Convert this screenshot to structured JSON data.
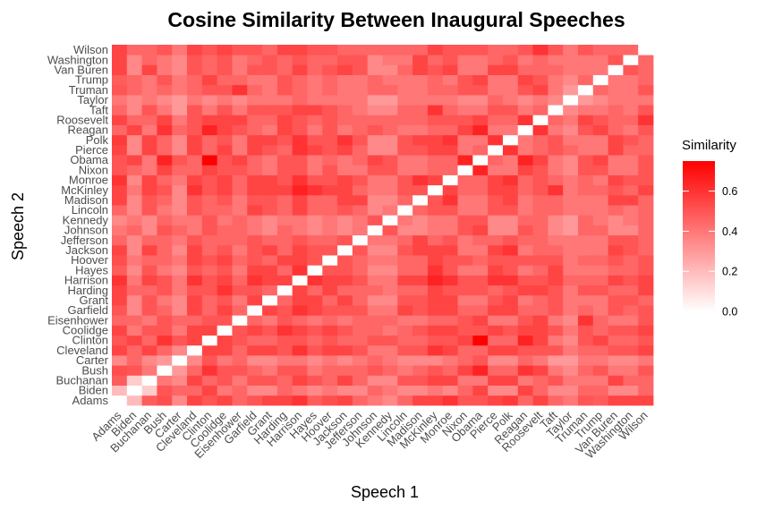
{
  "chart_data": {
    "type": "heatmap",
    "title": "Cosine Similarity Between Inaugural Speeches",
    "xlabel": "Speech 1",
    "ylabel": "Speech 2",
    "categories": [
      "Adams",
      "Biden",
      "Buchanan",
      "Bush",
      "Carter",
      "Cleveland",
      "Clinton",
      "Coolidge",
      "Eisenhower",
      "Garfield",
      "Grant",
      "Harding",
      "Harrison",
      "Hayes",
      "Hoover",
      "Jackson",
      "Jefferson",
      "Johnson",
      "Kennedy",
      "Lincoln",
      "Madison",
      "McKinley",
      "Monroe",
      "Nixon",
      "Obama",
      "Pierce",
      "Polk",
      "Reagan",
      "Roosevelt",
      "Taft",
      "Taylor",
      "Truman",
      "Trump",
      "Van Buren",
      "Washington",
      "Wilson"
    ],
    "value_range": [
      0,
      0.75
    ],
    "color_low": "#ffffff",
    "color_high": "#ff0000",
    "grid": false,
    "legend": {
      "title": "Similarity",
      "position": "right",
      "ticks": [
        {
          "value": 0.0,
          "label": "0.0"
        },
        {
          "value": 0.2,
          "label": "0.2"
        },
        {
          "value": 0.4,
          "label": "0.4"
        },
        {
          "value": 0.6,
          "label": "0.6"
        }
      ]
    },
    "values": [
      [
        0.0,
        0.2,
        0.48,
        0.52,
        0.35,
        0.55,
        0.5,
        0.55,
        0.45,
        0.5,
        0.55,
        0.55,
        0.6,
        0.48,
        0.52,
        0.55,
        0.45,
        0.4,
        0.35,
        0.45,
        0.55,
        0.55,
        0.6,
        0.5,
        0.5,
        0.55,
        0.58,
        0.45,
        0.55,
        0.45,
        0.4,
        0.5,
        0.48,
        0.55,
        0.55,
        0.55
      ],
      [
        0.2,
        0.0,
        0.15,
        0.5,
        0.45,
        0.45,
        0.55,
        0.4,
        0.45,
        0.35,
        0.35,
        0.45,
        0.4,
        0.35,
        0.4,
        0.35,
        0.35,
        0.45,
        0.4,
        0.35,
        0.35,
        0.4,
        0.35,
        0.45,
        0.55,
        0.35,
        0.35,
        0.55,
        0.45,
        0.35,
        0.35,
        0.45,
        0.45,
        0.35,
        0.35,
        0.45
      ],
      [
        0.48,
        0.15,
        0.0,
        0.4,
        0.35,
        0.55,
        0.45,
        0.5,
        0.4,
        0.5,
        0.5,
        0.45,
        0.55,
        0.5,
        0.45,
        0.55,
        0.45,
        0.35,
        0.35,
        0.5,
        0.5,
        0.55,
        0.55,
        0.4,
        0.4,
        0.55,
        0.55,
        0.4,
        0.45,
        0.5,
        0.4,
        0.4,
        0.4,
        0.55,
        0.45,
        0.45
      ],
      [
        0.52,
        0.5,
        0.4,
        0.0,
        0.3,
        0.45,
        0.6,
        0.5,
        0.5,
        0.45,
        0.4,
        0.5,
        0.5,
        0.4,
        0.45,
        0.45,
        0.45,
        0.5,
        0.45,
        0.4,
        0.45,
        0.5,
        0.45,
        0.55,
        0.65,
        0.45,
        0.45,
        0.6,
        0.55,
        0.4,
        0.35,
        0.45,
        0.5,
        0.4,
        0.4,
        0.5
      ],
      [
        0.35,
        0.45,
        0.35,
        0.3,
        0.0,
        0.35,
        0.5,
        0.4,
        0.45,
        0.35,
        0.35,
        0.4,
        0.4,
        0.35,
        0.4,
        0.35,
        0.4,
        0.45,
        0.4,
        0.35,
        0.35,
        0.35,
        0.4,
        0.45,
        0.5,
        0.35,
        0.35,
        0.45,
        0.4,
        0.3,
        0.3,
        0.4,
        0.4,
        0.35,
        0.35,
        0.4
      ],
      [
        0.55,
        0.45,
        0.55,
        0.45,
        0.35,
        0.0,
        0.55,
        0.55,
        0.45,
        0.55,
        0.55,
        0.5,
        0.6,
        0.5,
        0.55,
        0.55,
        0.5,
        0.4,
        0.4,
        0.5,
        0.5,
        0.6,
        0.55,
        0.45,
        0.45,
        0.55,
        0.55,
        0.5,
        0.5,
        0.5,
        0.4,
        0.45,
        0.45,
        0.5,
        0.5,
        0.55
      ],
      [
        0.5,
        0.55,
        0.45,
        0.6,
        0.5,
        0.55,
        0.0,
        0.55,
        0.5,
        0.45,
        0.45,
        0.5,
        0.5,
        0.45,
        0.5,
        0.45,
        0.45,
        0.5,
        0.5,
        0.45,
        0.45,
        0.5,
        0.5,
        0.55,
        0.75,
        0.45,
        0.45,
        0.65,
        0.55,
        0.4,
        0.35,
        0.5,
        0.55,
        0.45,
        0.45,
        0.5
      ],
      [
        0.55,
        0.4,
        0.5,
        0.5,
        0.4,
        0.55,
        0.55,
        0.0,
        0.5,
        0.55,
        0.5,
        0.6,
        0.55,
        0.5,
        0.55,
        0.5,
        0.45,
        0.45,
        0.4,
        0.45,
        0.5,
        0.55,
        0.55,
        0.5,
        0.5,
        0.55,
        0.5,
        0.55,
        0.55,
        0.5,
        0.4,
        0.5,
        0.45,
        0.5,
        0.5,
        0.55
      ],
      [
        0.45,
        0.45,
        0.4,
        0.5,
        0.45,
        0.45,
        0.5,
        0.5,
        0.0,
        0.45,
        0.4,
        0.5,
        0.45,
        0.4,
        0.45,
        0.4,
        0.45,
        0.45,
        0.45,
        0.4,
        0.4,
        0.45,
        0.45,
        0.5,
        0.55,
        0.4,
        0.4,
        0.5,
        0.55,
        0.4,
        0.35,
        0.6,
        0.45,
        0.4,
        0.4,
        0.5
      ],
      [
        0.5,
        0.35,
        0.5,
        0.45,
        0.35,
        0.55,
        0.45,
        0.55,
        0.45,
        0.0,
        0.55,
        0.5,
        0.6,
        0.55,
        0.5,
        0.5,
        0.5,
        0.4,
        0.4,
        0.55,
        0.5,
        0.55,
        0.55,
        0.45,
        0.45,
        0.55,
        0.55,
        0.45,
        0.45,
        0.5,
        0.4,
        0.45,
        0.4,
        0.5,
        0.45,
        0.5
      ],
      [
        0.55,
        0.35,
        0.5,
        0.4,
        0.35,
        0.55,
        0.45,
        0.5,
        0.4,
        0.55,
        0.0,
        0.45,
        0.55,
        0.55,
        0.45,
        0.55,
        0.45,
        0.35,
        0.35,
        0.5,
        0.5,
        0.55,
        0.55,
        0.4,
        0.4,
        0.5,
        0.55,
        0.4,
        0.45,
        0.5,
        0.4,
        0.4,
        0.4,
        0.5,
        0.5,
        0.45
      ],
      [
        0.55,
        0.45,
        0.45,
        0.5,
        0.4,
        0.5,
        0.5,
        0.6,
        0.5,
        0.5,
        0.45,
        0.0,
        0.55,
        0.45,
        0.55,
        0.45,
        0.45,
        0.45,
        0.4,
        0.45,
        0.45,
        0.55,
        0.5,
        0.5,
        0.5,
        0.45,
        0.5,
        0.55,
        0.55,
        0.5,
        0.4,
        0.5,
        0.5,
        0.45,
        0.45,
        0.55
      ],
      [
        0.6,
        0.4,
        0.55,
        0.5,
        0.4,
        0.6,
        0.5,
        0.55,
        0.45,
        0.6,
        0.55,
        0.55,
        0.0,
        0.6,
        0.55,
        0.55,
        0.5,
        0.4,
        0.4,
        0.55,
        0.55,
        0.65,
        0.6,
        0.5,
        0.5,
        0.6,
        0.6,
        0.5,
        0.5,
        0.55,
        0.45,
        0.45,
        0.45,
        0.55,
        0.5,
        0.55
      ],
      [
        0.48,
        0.35,
        0.5,
        0.4,
        0.35,
        0.5,
        0.45,
        0.5,
        0.4,
        0.55,
        0.55,
        0.45,
        0.6,
        0.0,
        0.5,
        0.5,
        0.45,
        0.35,
        0.35,
        0.45,
        0.45,
        0.6,
        0.5,
        0.4,
        0.4,
        0.55,
        0.5,
        0.4,
        0.45,
        0.55,
        0.4,
        0.4,
        0.4,
        0.45,
        0.45,
        0.5
      ],
      [
        0.52,
        0.4,
        0.45,
        0.45,
        0.4,
        0.55,
        0.5,
        0.55,
        0.45,
        0.5,
        0.45,
        0.55,
        0.55,
        0.5,
        0.0,
        0.5,
        0.45,
        0.4,
        0.4,
        0.45,
        0.45,
        0.55,
        0.5,
        0.5,
        0.45,
        0.5,
        0.5,
        0.5,
        0.5,
        0.5,
        0.4,
        0.45,
        0.45,
        0.5,
        0.45,
        0.5
      ],
      [
        0.55,
        0.35,
        0.55,
        0.45,
        0.35,
        0.55,
        0.45,
        0.5,
        0.4,
        0.5,
        0.55,
        0.45,
        0.55,
        0.5,
        0.5,
        0.0,
        0.5,
        0.35,
        0.35,
        0.5,
        0.55,
        0.55,
        0.55,
        0.4,
        0.4,
        0.55,
        0.6,
        0.4,
        0.45,
        0.45,
        0.4,
        0.4,
        0.4,
        0.55,
        0.5,
        0.45
      ],
      [
        0.45,
        0.35,
        0.45,
        0.45,
        0.4,
        0.5,
        0.45,
        0.45,
        0.45,
        0.5,
        0.45,
        0.45,
        0.5,
        0.45,
        0.45,
        0.5,
        0.0,
        0.4,
        0.4,
        0.45,
        0.55,
        0.45,
        0.5,
        0.4,
        0.45,
        0.45,
        0.5,
        0.45,
        0.45,
        0.4,
        0.4,
        0.4,
        0.4,
        0.5,
        0.5,
        0.45
      ],
      [
        0.4,
        0.45,
        0.35,
        0.5,
        0.45,
        0.4,
        0.5,
        0.45,
        0.45,
        0.4,
        0.35,
        0.45,
        0.4,
        0.35,
        0.4,
        0.35,
        0.4,
        0.0,
        0.5,
        0.35,
        0.35,
        0.4,
        0.4,
        0.5,
        0.55,
        0.35,
        0.35,
        0.5,
        0.45,
        0.35,
        0.3,
        0.45,
        0.45,
        0.35,
        0.35,
        0.45
      ],
      [
        0.35,
        0.4,
        0.35,
        0.45,
        0.4,
        0.4,
        0.5,
        0.4,
        0.45,
        0.4,
        0.35,
        0.4,
        0.4,
        0.35,
        0.4,
        0.35,
        0.4,
        0.5,
        0.0,
        0.4,
        0.35,
        0.4,
        0.4,
        0.5,
        0.5,
        0.35,
        0.35,
        0.45,
        0.45,
        0.35,
        0.3,
        0.45,
        0.4,
        0.35,
        0.4,
        0.45
      ],
      [
        0.45,
        0.35,
        0.5,
        0.4,
        0.35,
        0.5,
        0.45,
        0.45,
        0.4,
        0.55,
        0.5,
        0.45,
        0.55,
        0.45,
        0.45,
        0.5,
        0.45,
        0.35,
        0.4,
        0.0,
        0.45,
        0.5,
        0.5,
        0.4,
        0.4,
        0.5,
        0.5,
        0.4,
        0.45,
        0.45,
        0.4,
        0.4,
        0.4,
        0.45,
        0.4,
        0.45
      ],
      [
        0.55,
        0.35,
        0.5,
        0.45,
        0.35,
        0.5,
        0.45,
        0.5,
        0.4,
        0.5,
        0.5,
        0.45,
        0.55,
        0.45,
        0.45,
        0.55,
        0.55,
        0.35,
        0.35,
        0.45,
        0.0,
        0.5,
        0.6,
        0.4,
        0.4,
        0.5,
        0.55,
        0.4,
        0.45,
        0.45,
        0.4,
        0.4,
        0.4,
        0.55,
        0.55,
        0.45
      ],
      [
        0.55,
        0.4,
        0.55,
        0.5,
        0.35,
        0.6,
        0.5,
        0.55,
        0.45,
        0.55,
        0.55,
        0.55,
        0.65,
        0.6,
        0.55,
        0.55,
        0.45,
        0.4,
        0.4,
        0.5,
        0.5,
        0.0,
        0.55,
        0.45,
        0.45,
        0.55,
        0.55,
        0.45,
        0.5,
        0.6,
        0.4,
        0.45,
        0.45,
        0.5,
        0.45,
        0.55
      ],
      [
        0.6,
        0.35,
        0.55,
        0.45,
        0.4,
        0.55,
        0.5,
        0.55,
        0.45,
        0.55,
        0.55,
        0.5,
        0.6,
        0.5,
        0.5,
        0.55,
        0.5,
        0.4,
        0.4,
        0.5,
        0.6,
        0.55,
        0.0,
        0.45,
        0.45,
        0.55,
        0.6,
        0.45,
        0.5,
        0.45,
        0.4,
        0.45,
        0.4,
        0.55,
        0.5,
        0.5
      ],
      [
        0.5,
        0.45,
        0.4,
        0.55,
        0.45,
        0.45,
        0.55,
        0.5,
        0.5,
        0.45,
        0.4,
        0.5,
        0.5,
        0.4,
        0.5,
        0.4,
        0.4,
        0.5,
        0.5,
        0.4,
        0.4,
        0.45,
        0.45,
        0.0,
        0.65,
        0.4,
        0.4,
        0.55,
        0.5,
        0.4,
        0.35,
        0.5,
        0.5,
        0.4,
        0.4,
        0.5
      ],
      [
        0.5,
        0.55,
        0.4,
        0.65,
        0.5,
        0.45,
        0.75,
        0.5,
        0.55,
        0.45,
        0.4,
        0.5,
        0.5,
        0.4,
        0.45,
        0.4,
        0.45,
        0.55,
        0.5,
        0.4,
        0.4,
        0.45,
        0.45,
        0.65,
        0.0,
        0.45,
        0.4,
        0.65,
        0.55,
        0.4,
        0.35,
        0.5,
        0.55,
        0.4,
        0.4,
        0.5
      ],
      [
        0.55,
        0.35,
        0.55,
        0.45,
        0.35,
        0.55,
        0.45,
        0.55,
        0.4,
        0.55,
        0.5,
        0.45,
        0.6,
        0.55,
        0.5,
        0.55,
        0.45,
        0.35,
        0.35,
        0.5,
        0.5,
        0.55,
        0.55,
        0.4,
        0.45,
        0.0,
        0.6,
        0.4,
        0.45,
        0.5,
        0.45,
        0.4,
        0.4,
        0.55,
        0.45,
        0.45
      ],
      [
        0.58,
        0.35,
        0.55,
        0.45,
        0.35,
        0.55,
        0.45,
        0.5,
        0.4,
        0.55,
        0.55,
        0.5,
        0.6,
        0.5,
        0.5,
        0.6,
        0.5,
        0.35,
        0.35,
        0.5,
        0.55,
        0.55,
        0.6,
        0.4,
        0.4,
        0.6,
        0.0,
        0.4,
        0.45,
        0.5,
        0.4,
        0.4,
        0.4,
        0.55,
        0.5,
        0.45
      ],
      [
        0.45,
        0.55,
        0.4,
        0.6,
        0.45,
        0.5,
        0.65,
        0.55,
        0.5,
        0.45,
        0.4,
        0.55,
        0.5,
        0.4,
        0.5,
        0.4,
        0.45,
        0.5,
        0.45,
        0.4,
        0.4,
        0.45,
        0.45,
        0.55,
        0.65,
        0.4,
        0.4,
        0.0,
        0.6,
        0.4,
        0.35,
        0.5,
        0.55,
        0.45,
        0.4,
        0.5
      ],
      [
        0.55,
        0.45,
        0.45,
        0.55,
        0.4,
        0.5,
        0.55,
        0.55,
        0.55,
        0.45,
        0.45,
        0.55,
        0.5,
        0.45,
        0.5,
        0.45,
        0.45,
        0.45,
        0.45,
        0.45,
        0.45,
        0.5,
        0.5,
        0.5,
        0.55,
        0.45,
        0.45,
        0.6,
        0.0,
        0.45,
        0.4,
        0.55,
        0.5,
        0.45,
        0.45,
        0.6
      ],
      [
        0.45,
        0.35,
        0.5,
        0.4,
        0.3,
        0.5,
        0.4,
        0.5,
        0.4,
        0.5,
        0.5,
        0.5,
        0.55,
        0.55,
        0.5,
        0.45,
        0.4,
        0.35,
        0.35,
        0.45,
        0.45,
        0.6,
        0.45,
        0.4,
        0.4,
        0.5,
        0.5,
        0.4,
        0.45,
        0.0,
        0.35,
        0.4,
        0.4,
        0.45,
        0.4,
        0.5
      ],
      [
        0.4,
        0.35,
        0.4,
        0.35,
        0.3,
        0.4,
        0.35,
        0.4,
        0.35,
        0.4,
        0.4,
        0.4,
        0.45,
        0.4,
        0.4,
        0.4,
        0.4,
        0.3,
        0.3,
        0.4,
        0.4,
        0.4,
        0.4,
        0.35,
        0.35,
        0.45,
        0.4,
        0.35,
        0.4,
        0.35,
        0.0,
        0.3,
        0.35,
        0.4,
        0.4,
        0.4
      ],
      [
        0.5,
        0.45,
        0.4,
        0.45,
        0.4,
        0.45,
        0.5,
        0.5,
        0.6,
        0.45,
        0.4,
        0.5,
        0.45,
        0.4,
        0.45,
        0.4,
        0.4,
        0.45,
        0.45,
        0.4,
        0.4,
        0.45,
        0.45,
        0.5,
        0.5,
        0.4,
        0.4,
        0.5,
        0.55,
        0.4,
        0.3,
        0.0,
        0.45,
        0.4,
        0.4,
        0.5
      ],
      [
        0.48,
        0.45,
        0.4,
        0.5,
        0.4,
        0.45,
        0.55,
        0.45,
        0.45,
        0.4,
        0.4,
        0.5,
        0.45,
        0.4,
        0.45,
        0.4,
        0.4,
        0.45,
        0.4,
        0.4,
        0.4,
        0.45,
        0.4,
        0.5,
        0.55,
        0.4,
        0.4,
        0.55,
        0.5,
        0.4,
        0.35,
        0.45,
        0.0,
        0.4,
        0.4,
        0.45
      ],
      [
        0.55,
        0.35,
        0.55,
        0.4,
        0.35,
        0.5,
        0.45,
        0.5,
        0.4,
        0.5,
        0.5,
        0.45,
        0.55,
        0.45,
        0.5,
        0.55,
        0.5,
        0.35,
        0.35,
        0.45,
        0.55,
        0.5,
        0.55,
        0.4,
        0.4,
        0.55,
        0.55,
        0.45,
        0.45,
        0.45,
        0.4,
        0.4,
        0.4,
        0.0,
        0.5,
        0.45
      ],
      [
        0.55,
        0.35,
        0.45,
        0.4,
        0.35,
        0.5,
        0.45,
        0.5,
        0.4,
        0.45,
        0.5,
        0.45,
        0.5,
        0.45,
        0.45,
        0.5,
        0.5,
        0.35,
        0.4,
        0.4,
        0.55,
        0.45,
        0.5,
        0.4,
        0.4,
        0.45,
        0.5,
        0.4,
        0.45,
        0.4,
        0.4,
        0.4,
        0.4,
        0.5,
        0.0,
        0.45
      ],
      [
        0.55,
        0.45,
        0.45,
        0.5,
        0.4,
        0.55,
        0.5,
        0.55,
        0.5,
        0.5,
        0.45,
        0.55,
        0.55,
        0.5,
        0.5,
        0.45,
        0.45,
        0.45,
        0.45,
        0.45,
        0.45,
        0.55,
        0.5,
        0.5,
        0.5,
        0.45,
        0.45,
        0.5,
        0.6,
        0.5,
        0.4,
        0.5,
        0.45,
        0.45,
        0.45,
        0.0
      ]
    ]
  }
}
